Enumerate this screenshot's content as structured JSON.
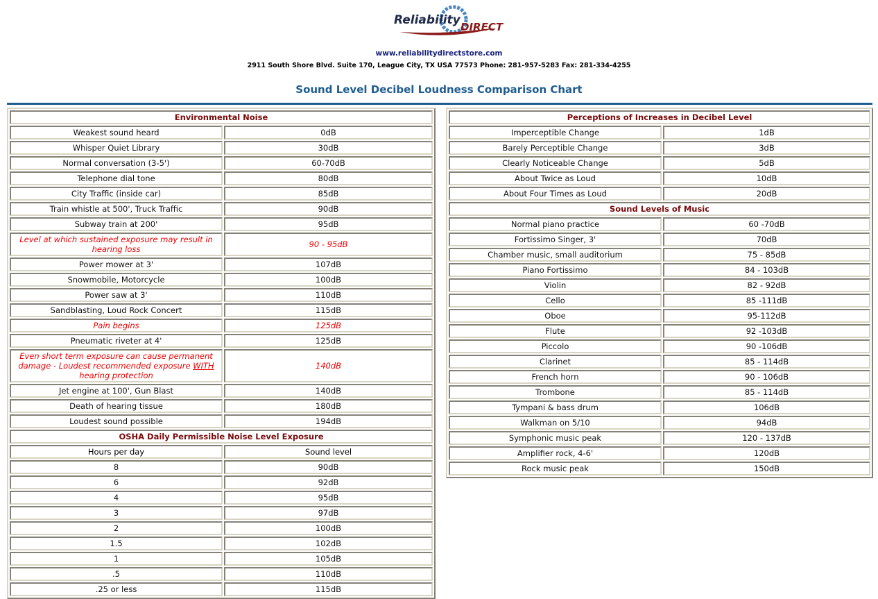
{
  "header": {
    "logo_text": "Reliability DIRECT",
    "url": "www.reliabilitydirectstore.com",
    "address": "2911 South Shore Blvd. Suite 170, League City, TX USA 77573 Phone: 281-957-5283 Fax: 281-334-4255",
    "title": "Sound Level Decibel Loudness Comparison Chart"
  },
  "colors": {
    "title": "#1f5c8f",
    "section": "#7a0a0a",
    "warning": "#e00000"
  },
  "left": {
    "env_title": "Environmental Noise",
    "env_rows": [
      {
        "a": "Weakest sound heard",
        "b": "0dB"
      },
      {
        "a": "Whisper Quiet Library",
        "b": "30dB"
      },
      {
        "a": "Normal conversation (3-5')",
        "b": "60-70dB"
      },
      {
        "a": "Telephone dial tone",
        "b": "80dB"
      },
      {
        "a": "City Traffic (inside car)",
        "b": "85dB"
      },
      {
        "a": "Train whistle at 500', Truck Traffic",
        "b": "90dB"
      },
      {
        "a": "Subway train at 200'",
        "b": "95dB"
      },
      {
        "a": "Level at which sustained exposure may result in hearing loss",
        "b": "90 - 95dB",
        "warn": true
      },
      {
        "a": "Power mower at 3'",
        "b": "107dB"
      },
      {
        "a": "Snowmobile, Motorcycle",
        "b": "100dB"
      },
      {
        "a": "Power saw at 3'",
        "b": "110dB"
      },
      {
        "a": "Sandblasting, Loud Rock Concert",
        "b": "115dB"
      },
      {
        "a": "Pain begins",
        "b": "125dB",
        "warn": true
      },
      {
        "a": "Pneumatic riveter at 4'",
        "b": "125dB"
      },
      {
        "a": "Even short term exposure can cause permanent damage - Loudest recommended exposure WITH hearing protection",
        "b": "140dB",
        "warn": true
      },
      {
        "a": "Jet engine at 100', Gun Blast",
        "b": "140dB"
      },
      {
        "a": "Death of hearing tissue",
        "b": "180dB"
      },
      {
        "a": "Loudest sound possible",
        "b": "194dB"
      }
    ],
    "osha_title": "OSHA Daily Permissible Noise Level Exposure",
    "osha_headers": [
      "Hours per day",
      "Sound level"
    ],
    "osha_rows": [
      {
        "a": "8",
        "b": "90dB"
      },
      {
        "a": "6",
        "b": "92dB"
      },
      {
        "a": "4",
        "b": "95dB"
      },
      {
        "a": "3",
        "b": "97dB"
      },
      {
        "a": "2",
        "b": "100dB"
      },
      {
        "a": "1.5",
        "b": "102dB"
      },
      {
        "a": "1",
        "b": "105dB"
      },
      {
        "a": ".5",
        "b": "110dB"
      },
      {
        "a": ".25 or less",
        "b": "115dB"
      }
    ]
  },
  "right": {
    "perc_title": "Perceptions of Increases in Decibel Level",
    "perc_rows": [
      {
        "a": "Imperceptible Change",
        "b": "1dB"
      },
      {
        "a": "Barely Perceptible Change",
        "b": "3dB"
      },
      {
        "a": "Clearly Noticeable Change",
        "b": "5dB"
      },
      {
        "a": "About Twice as Loud",
        "b": "10dB"
      },
      {
        "a": "About Four Times as Loud",
        "b": "20dB"
      }
    ],
    "music_title": "Sound Levels of Music",
    "music_rows": [
      {
        "a": "Normal piano practice",
        "b": "60 -70dB"
      },
      {
        "a": "Fortissimo Singer, 3'",
        "b": "70dB"
      },
      {
        "a": "Chamber music, small auditorium",
        "b": "75 - 85dB"
      },
      {
        "a": "Piano Fortissimo",
        "b": "84 - 103dB"
      },
      {
        "a": "Violin",
        "b": "82 - 92dB"
      },
      {
        "a": "Cello",
        "b": "85 -111dB"
      },
      {
        "a": "Oboe",
        "b": "95-112dB"
      },
      {
        "a": "Flute",
        "b": "92 -103dB"
      },
      {
        "a": "Piccolo",
        "b": "90 -106dB"
      },
      {
        "a": "Clarinet",
        "b": "85 - 114dB"
      },
      {
        "a": "French horn",
        "b": "90 - 106dB"
      },
      {
        "a": "Trombone",
        "b": "85 - 114dB"
      },
      {
        "a": "Tympani & bass drum",
        "b": "106dB"
      },
      {
        "a": "Walkman on 5/10",
        "b": "94dB"
      },
      {
        "a": "Symphonic music peak",
        "b": "120 - 137dB"
      },
      {
        "a": "Amplifier rock, 4-6'",
        "b": "120dB"
      },
      {
        "a": "Rock music peak",
        "b": "150dB"
      }
    ]
  }
}
